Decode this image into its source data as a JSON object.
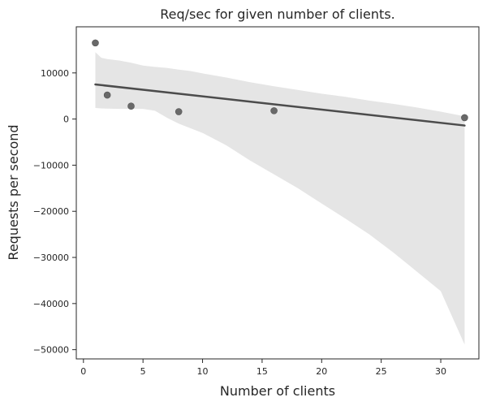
{
  "chart_data": {
    "type": "scatter",
    "title": "Req/sec for given number of clients.",
    "xlabel": "Number of clients",
    "ylabel": "Requests per second",
    "xlim": [
      -0.6,
      33.2
    ],
    "ylim": [
      -52000,
      20000
    ],
    "xticks": [
      0,
      5,
      10,
      15,
      20,
      25,
      30
    ],
    "yticks": [
      10000,
      0,
      -10000,
      -20000,
      -30000,
      -40000,
      -50000
    ],
    "xtick_labels": [
      "0",
      "5",
      "10",
      "15",
      "20",
      "25",
      "30"
    ],
    "ytick_labels": [
      "10000",
      "0",
      "−10000",
      "−20000",
      "−30000",
      "−40000",
      "−50000"
    ],
    "grid": false,
    "points": [
      {
        "x": 1,
        "y": 16500
      },
      {
        "x": 2,
        "y": 5200
      },
      {
        "x": 4,
        "y": 2800
      },
      {
        "x": 8,
        "y": 1600
      },
      {
        "x": 16,
        "y": 1800
      },
      {
        "x": 32,
        "y": 300
      }
    ],
    "regression": {
      "x": [
        1,
        32
      ],
      "y": [
        7500,
        -1400
      ]
    },
    "confidence_band": {
      "x": [
        1,
        1.5,
        2,
        3,
        4,
        5,
        6,
        7,
        8,
        9,
        10,
        12,
        14,
        16,
        18,
        20,
        22,
        24,
        26,
        28,
        30,
        32
      ],
      "upper": [
        14500,
        13300,
        13000,
        12700,
        12200,
        11600,
        11300,
        11100,
        10700,
        10400,
        9900,
        9000,
        8000,
        7100,
        6300,
        5500,
        4800,
        4000,
        3300,
        2500,
        1600,
        600
      ],
      "lower": [
        2400,
        2300,
        2250,
        2200,
        2200,
        2200,
        1800,
        300,
        -1000,
        -2000,
        -3000,
        -5700,
        -9000,
        -12000,
        -15000,
        -18300,
        -21600,
        -25000,
        -28900,
        -33100,
        -37300,
        -48900
      ]
    },
    "colors": {
      "point": "#696969",
      "line": "#4c4c4c",
      "band": "#e5e5e5",
      "axis": "#262626"
    }
  }
}
